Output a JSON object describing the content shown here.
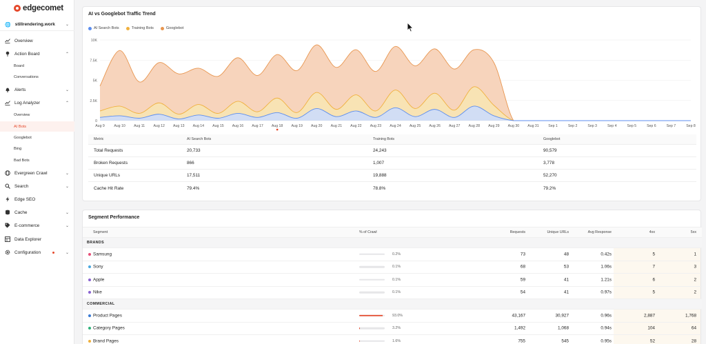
{
  "brand": {
    "name": "edgecomet"
  },
  "site": {
    "name": "stillrendering.work"
  },
  "sidebar": {
    "items": [
      {
        "label": "Overview",
        "icon": "chart-icon"
      },
      {
        "label": "Action Board",
        "icon": "pin-icon"
      },
      {
        "label": "Alerts",
        "icon": "bell-icon"
      },
      {
        "label": "Log Analyzer",
        "icon": "chart-icon"
      },
      {
        "label": "Evergreen Crawl",
        "icon": "globe-icon"
      },
      {
        "label": "Search",
        "icon": "search-icon"
      },
      {
        "label": "Edge SEO",
        "icon": "bolt-icon"
      },
      {
        "label": "Cache",
        "icon": "database-icon"
      },
      {
        "label": "E-commerce",
        "icon": "tag-icon"
      },
      {
        "label": "Data Explorer",
        "icon": "table-icon"
      },
      {
        "label": "Configuration",
        "icon": "gear-icon"
      }
    ],
    "action_board_sub": [
      "Board",
      "Conversations"
    ],
    "log_analyzer_sub": [
      "Overview",
      "AI Bots",
      "Googlebot",
      "Bing",
      "Bad Bots"
    ]
  },
  "traffic": {
    "title": "AI vs Googlebot Traffic Trend",
    "legend": [
      "AI Search Bots",
      "Training Bots",
      "Googlebot"
    ],
    "colors": {
      "ai": "#5b8def",
      "training": "#f0b03d",
      "googlebot": "#e8954e",
      "ai_fill": "#cfdcf8",
      "training_fill": "#f8e4b3",
      "googlebot_fill": "#f7d2b8"
    }
  },
  "chart_data": {
    "type": "area",
    "x": [
      "Aug 9",
      "Aug 10",
      "Aug 11",
      "Aug 12",
      "Aug 13",
      "Aug 14",
      "Aug 15",
      "Aug 16",
      "Aug 17",
      "Aug 18",
      "Aug 19",
      "Aug 20",
      "Aug 21",
      "Aug 22",
      "Aug 23",
      "Aug 24",
      "Aug 25",
      "Aug 26",
      "Aug 27",
      "Aug 28",
      "Aug 29",
      "Aug 30",
      "Aug 31",
      "Sep 1",
      "Sep 2",
      "Sep 3",
      "Sep 4",
      "Sep 5",
      "Sep 6",
      "Sep 7",
      "Sep 8"
    ],
    "ylim": [
      0,
      10000
    ],
    "yticks": [
      "0",
      "2.5K",
      "5K",
      "7.5K",
      "10K"
    ],
    "series": [
      {
        "name": "AI Search Bots",
        "values": [
          400,
          600,
          300,
          800,
          200,
          700,
          300,
          900,
          400,
          1000,
          300,
          1500,
          500,
          1200,
          400,
          1600,
          500,
          1400,
          400,
          1800,
          600,
          0,
          0,
          0,
          0,
          0,
          0,
          0,
          0,
          0,
          0
        ]
      },
      {
        "name": "Training Bots",
        "values": [
          1200,
          1800,
          900,
          2200,
          800,
          2000,
          900,
          2400,
          1100,
          2800,
          1000,
          3500,
          1400,
          3200,
          1200,
          3800,
          1500,
          3400,
          1300,
          4200,
          1900,
          0,
          0,
          0,
          0,
          0,
          0,
          0,
          0,
          0,
          0
        ]
      },
      {
        "name": "Googlebot",
        "values": [
          4300,
          8700,
          4800,
          7200,
          5800,
          6500,
          5500,
          7800,
          5600,
          8200,
          6200,
          9400,
          6600,
          8800,
          6100,
          9200,
          6800,
          8900,
          6400,
          8800,
          7200,
          0,
          0,
          0,
          0,
          0,
          0,
          0,
          0,
          0,
          0
        ]
      }
    ]
  },
  "metrics": {
    "headers": [
      "Metric",
      "AI Search Bots",
      "Training Bots",
      "Googlebot"
    ],
    "rows": [
      [
        "Total Requests",
        "20,733",
        "24,243",
        "90,579"
      ],
      [
        "Broken Requests",
        "866",
        "1,007",
        "3,778"
      ],
      [
        "Unique URLs",
        "17,511",
        "19,888",
        "52,270"
      ],
      [
        "Cache Hit Rate",
        "79.4%",
        "78.8%",
        "79.2%"
      ]
    ]
  },
  "segments": {
    "title": "Segment Performance",
    "headers": [
      "Segment",
      "% of Crawl",
      "Requests",
      "Unique URLs",
      "Avg Response",
      "4xx",
      "5xx"
    ],
    "groups": [
      {
        "label": "BRANDS",
        "rows": [
          {
            "name": "Samsung",
            "pct": "0.2%",
            "fill": 0.2,
            "requests": "73",
            "unique": "48",
            "avg": "0.42s",
            "c4xx": "5",
            "c5xx": "1",
            "color": "#e84e78"
          },
          {
            "name": "Sony",
            "pct": "0.1%",
            "fill": 0.1,
            "requests": "68",
            "unique": "53",
            "avg": "1.06s",
            "c4xx": "7",
            "c5xx": "3",
            "color": "#4aa8e0"
          },
          {
            "name": "Apple",
            "pct": "0.1%",
            "fill": 0.1,
            "requests": "59",
            "unique": "41",
            "avg": "1.21s",
            "c4xx": "6",
            "c5xx": "2",
            "color": "#8a63d2"
          },
          {
            "name": "Nike",
            "pct": "0.1%",
            "fill": 0.1,
            "requests": "54",
            "unique": "41",
            "avg": "0.97s",
            "c4xx": "5",
            "c5xx": "2",
            "color": "#8a63d2"
          }
        ]
      },
      {
        "label": "COMMERCIAL",
        "rows": [
          {
            "name": "Product Pages",
            "pct": "93.0%",
            "fill": 93.0,
            "requests": "43,167",
            "unique": "30,927",
            "avg": "0.96s",
            "c4xx": "2,887",
            "c5xx": "1,768",
            "color": "#3a7bd5"
          },
          {
            "name": "Category Pages",
            "pct": "3.2%",
            "fill": 3.2,
            "requests": "1,492",
            "unique": "1,068",
            "avg": "0.94s",
            "c4xx": "104",
            "c5xx": "64",
            "color": "#2fb37a"
          },
          {
            "name": "Brand Pages",
            "pct": "1.6%",
            "fill": 1.6,
            "requests": "755",
            "unique": "545",
            "avg": "0.95s",
            "c4xx": "52",
            "c5xx": "28",
            "color": "#f0b03d"
          }
        ]
      }
    ]
  }
}
